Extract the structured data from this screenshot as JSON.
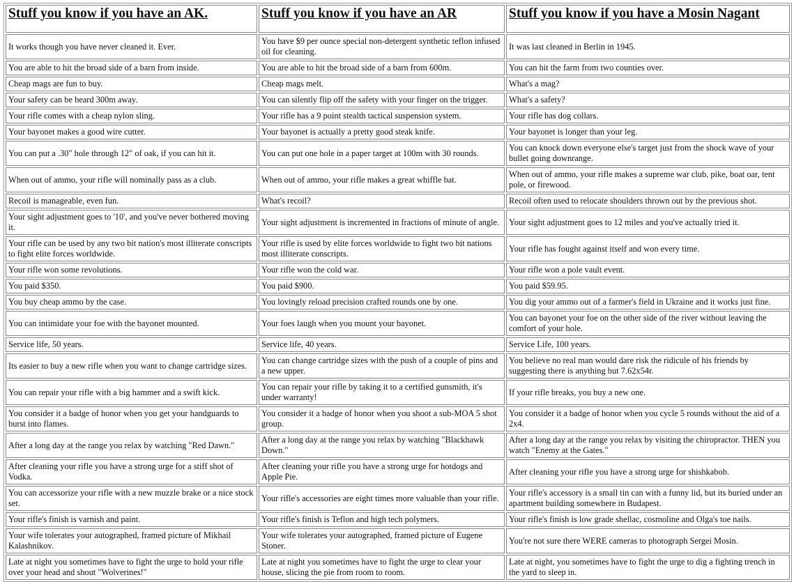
{
  "headers": [
    "Stuff you know if you have an AK.",
    "Stuff you know if you have an AR",
    "Stuff you know if you have a Mosin Nagant"
  ],
  "rows": [
    [
      "It works though you have never cleaned it. Ever.",
      "You have $9 per ounce special non-detergent synthetic teflon infused oil for cleaning.",
      "It was last cleaned in Berlin in 1945."
    ],
    [
      "You are able to hit the broad side of a barn from inside.",
      "You are able to hit the broad side of a barn from 600m.",
      "You can hit the farm from two counties over."
    ],
    [
      "Cheap mags are fun to buy.",
      "Cheap mags melt.",
      "What's a mag?"
    ],
    [
      "Your safety can be heard 300m away.",
      "You can silently flip off the safety with your finger on the trigger.",
      "What's a safety?"
    ],
    [
      "Your rifle comes with a cheap nylon sling.",
      "Your rifle has a 9 point stealth tactical suspension system.",
      "Your rifle has dog collars."
    ],
    [
      "Your bayonet makes a good wire cutter.",
      "Your bayonet is actually a pretty good steak knife.",
      "Your bayonet is longer than your leg."
    ],
    [
      "You can put a .30\" hole through 12\" of oak, if you can hit it.",
      "You can put one hole in a paper target at 100m with 30 rounds.",
      "You can knock down everyone else's target just from the shock wave of your bullet going downrange."
    ],
    [
      "When out of ammo, your rifle will nominally pass as a club.",
      "When out of ammo, your rifle makes a great whiffle bat.",
      "When out of ammo, your rifle makes a supreme war club, pike, boat oar, tent pole, or firewood."
    ],
    [
      "Recoil is manageable, even fun.",
      "What's recoil?",
      "Recoil often used to relocate shoulders thrown out by the previous shot."
    ],
    [
      "Your sight adjustment goes to '10', and you've never bothered moving it.",
      "Your sight adjustment is incremented in fractions of minute of angle.",
      "Your sight adjustment goes to 12 miles and you've actually tried it."
    ],
    [
      "Your rifle can be used by any two bit nation's most illiterate conscripts to fight elite forces worldwide.",
      "Your rifle is used by elite forces worldwide to fight two bit nations most illiterate conscripts.",
      "Your rifle has fought against itself and won every time."
    ],
    [
      "Your rifle won some revolutions.",
      "Your rifle won the cold war.",
      "Your rifle won a pole vault event."
    ],
    [
      "You paid $350.",
      "You paid $900.",
      "You paid $59.95."
    ],
    [
      "You buy cheap ammo by the case.",
      "You lovingly reload precision crafted rounds one by one.",
      "You dig your ammo out of a farmer's field in Ukraine and it works just fine."
    ],
    [
      "You can intimidate your foe with the bayonet mounted.",
      "Your foes laugh when you mount your bayonet.",
      "You can bayonet your foe on the other side of the river without leaving the comfort of your hole."
    ],
    [
      "Service life, 50 years.",
      "Service life, 40 years.",
      "Service Life, 100 years."
    ],
    [
      "Its easier to buy a new rifle when you want to change cartridge sizes.",
      "You can change cartridge sizes with the push of a couple of pins and a new upper.",
      "You believe no real man would dare risk the ridicule of his friends by suggesting there is anything but 7.62x54r."
    ],
    [
      "You can repair your rifle with a big hammer and a swift kick.",
      "You can repair your rifle by taking it to a certified gunsmith, it's under warranty!",
      "If your rifle breaks, you buy a new one."
    ],
    [
      "You consider it a badge of honor when you get your handguards to burst into flames.",
      "You consider it a badge of honor when you shoot a sub-MOA 5 shot group.",
      "You consider it a badge of honor when you cycle 5 rounds without the aid of a 2x4."
    ],
    [
      "After a long day at the range you relax by watching \"Red Dawn.\"",
      "After a long day at the range you relax by watching \"Blackhawk Down.\"",
      "After a long day at the range you relax by visiting the chiropractor. THEN you watch \"Enemy at the Gates.\""
    ],
    [
      "After cleaning your rifle you have a strong urge for a stiff shot of Vodka.",
      "After cleaning your rifle you have a strong urge for hotdogs and Apple Pie.",
      "After cleaning your rifle you have a strong urge for shishkabob."
    ],
    [
      "You can accessorize your rifle with a new muzzle brake or a nice stock set.",
      "Your rifle's accessories are eight times more valuable than your rifle.",
      "Your rifle's accessory is a small tin can with a funny lid, but its buried under an apartment building somewhere in Budapest."
    ],
    [
      "Your rifle's finish is varnish and paint.",
      "Your rifle's finish is Teflon and high tech polymers.",
      "Your rifle's finish is low grade shellac, cosmoline and Olga's toe nails."
    ],
    [
      "Your wife tolerates your autographed, framed picture of Mikhail Kalashnikov.",
      "Your wife tolerates your autographed, framed picture of Eugene Stoner.",
      "You're not sure there WERE cameras to photograph Sergei Mosin."
    ],
    [
      "Late at night you sometimes have to fight the urge to hold your rifle over your head and shout \"Wolverines!\"",
      "Late at night you sometimes have to fight the urge to clear your house, slicing the pie from room to room.",
      "Late at night, you sometimes have to fight the urge to dig a fighting trench in the yard to sleep in."
    ]
  ]
}
